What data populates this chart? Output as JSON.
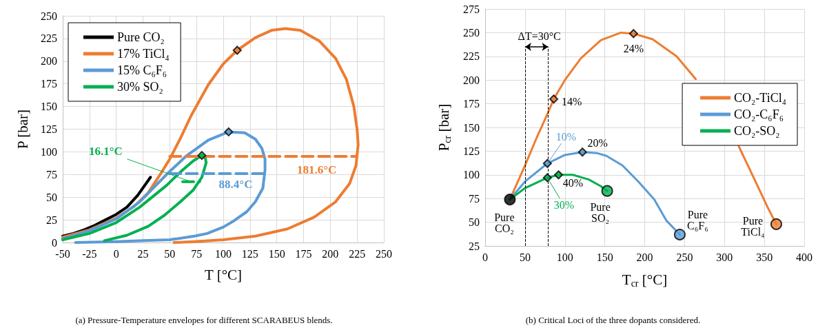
{
  "chart_data": [
    {
      "type": "line",
      "xlabel": "T [°C]",
      "ylabel": "P [bar]",
      "xlim": [
        -50,
        250
      ],
      "ylim": [
        0,
        250
      ],
      "xticks": [
        -50,
        -25,
        0,
        25,
        50,
        75,
        100,
        125,
        150,
        175,
        200,
        225,
        250
      ],
      "yticks": [
        0,
        25,
        50,
        75,
        100,
        125,
        150,
        175,
        200,
        225,
        250
      ],
      "grid": true,
      "legend": "top left",
      "marker": "none",
      "series": [
        {
          "name": "Pure CO₂",
          "color": "#000000",
          "x": [
            -50,
            -40,
            -30,
            -20,
            -10,
            0,
            10,
            20,
            32
          ],
          "values": [
            7,
            10,
            14,
            19,
            25,
            31,
            39,
            52,
            72
          ]
        },
        {
          "name": "17% TiCl₄",
          "color": "#ed7d31",
          "x": [
            -50,
            -25,
            0,
            17,
            30,
            41,
            50,
            60,
            70,
            86,
            100,
            113,
            130,
            145,
            158,
            172,
            190,
            205,
            215,
            222,
            225,
            226,
            224,
            218,
            205,
            185,
            160,
            130,
            100,
            73,
            54
          ],
          "values": [
            6,
            14,
            27,
            40,
            55,
            75,
            92,
            115,
            140,
            174,
            197,
            212,
            226,
            234,
            236,
            234,
            222,
            203,
            180,
            150,
            125,
            108,
            85,
            65,
            45,
            28,
            15,
            7,
            3,
            1,
            0
          ]
        },
        {
          "name": "15% C₆F₆",
          "color": "#5b9bd5",
          "x": [
            -50,
            -25,
            0,
            22,
            47,
            65,
            86,
            105,
            120,
            130,
            136,
            139,
            139,
            137,
            130,
            122,
            110,
            100,
            85,
            73,
            50,
            25,
            0,
            -38
          ],
          "values": [
            4,
            13,
            26,
            45,
            75,
            95,
            113,
            122,
            121,
            114,
            104,
            92,
            80,
            60,
            45,
            34,
            24,
            17,
            10,
            7,
            3,
            2,
            1,
            0
          ]
        },
        {
          "name": "30% SO₂",
          "color": "#00b050",
          "x": [
            -50,
            -25,
            0,
            22,
            47,
            62,
            72,
            80,
            83,
            84,
            80,
            72,
            60,
            45,
            30,
            10,
            -11
          ],
          "values": [
            3,
            10,
            22,
            39,
            63,
            80,
            90,
            96,
            95,
            88,
            72,
            58,
            45,
            30,
            18,
            8,
            2
          ]
        },
        {
          "line_style": "dashed",
          "color": "#ed7d31",
          "x": [
            50,
            225
          ],
          "values": [
            95,
            95
          ]
        },
        {
          "line_style": "dashed",
          "color": "#5b9bd5",
          "x": [
            50,
            138
          ],
          "values": [
            76,
            76
          ]
        },
        {
          "line_style": "dashed",
          "color": "#00b050",
          "x": [
            62,
            78
          ],
          "values": [
            67,
            67
          ]
        },
        {
          "type": "scatter",
          "marker": "diamond",
          "color": "#ed7d31",
          "x": [
            113
          ],
          "values": [
            212
          ]
        },
        {
          "type": "scatter",
          "marker": "diamond",
          "color": "#5b9bd5",
          "x": [
            105
          ],
          "values": [
            122
          ]
        },
        {
          "type": "scatter",
          "marker": "diamond",
          "color": "#00b050",
          "x": [
            80
          ],
          "values": [
            96
          ]
        }
      ],
      "annotations": [
        {
          "text": "16.1°C",
          "x": 70,
          "y": 67
        },
        {
          "text": "88.4°C",
          "x": 138,
          "y": 76
        },
        {
          "text": "181.6°C",
          "x": 224,
          "y": 95
        },
        "(a) Pressure-Temperature envelopes for different SCARABEUS blends."
      ]
    },
    {
      "type": "line",
      "xlabel": "T$_{cr}$ [°C]",
      "ylabel": "P$_{cr}$ [bar]",
      "xlim": [
        0,
        400
      ],
      "ylim": [
        25,
        275
      ],
      "xticks": [
        0,
        50,
        100,
        150,
        200,
        250,
        300,
        350,
        400
      ],
      "yticks": [
        25,
        50,
        75,
        100,
        125,
        150,
        175,
        200,
        225,
        250,
        275
      ],
      "grid": true,
      "legend": "right",
      "marker": "none",
      "series": [
        {
          "name": "CO₂-TiCl₄",
          "color": "#ed7d31",
          "x": [
            31,
            50,
            65,
            78,
            86,
            100,
            120,
            145,
            170,
            186,
            210,
            240,
            264,
            290,
            318,
            335,
            354,
            365
          ],
          "values": [
            74,
            110,
            140,
            164,
            180,
            200,
            223,
            242,
            250,
            249,
            243,
            225,
            201,
            null,
            130,
            100,
            66,
            48
          ]
        },
        {
          "name": "CO₂-C₆F₆",
          "color": "#5b9bd5",
          "x": [
            31,
            50,
            78,
            100,
            122,
            140,
            152,
            172,
            192,
            212,
            227,
            244
          ],
          "values": [
            74,
            93,
            112,
            121,
            124,
            123,
            120,
            110,
            93,
            74,
            52,
            37
          ]
        },
        {
          "name": "CO₂-SO₂",
          "color": "#00b050",
          "x": [
            31,
            50,
            78,
            92,
            110,
            130,
            145,
            153
          ],
          "values": [
            74,
            86,
            97,
            100,
            100,
            95,
            88,
            83
          ]
        },
        {
          "type": "scatter",
          "marker": "diamond",
          "color": "#ed7d31",
          "x": [
            86,
            186
          ],
          "values": [
            180,
            249
          ]
        },
        {
          "type": "scatter",
          "marker": "diamond",
          "color": "#5b9bd5",
          "x": [
            78,
            122
          ],
          "values": [
            112,
            124
          ]
        },
        {
          "type": "scatter",
          "marker": "diamond",
          "color": "#00b050",
          "x": [
            78,
            92
          ],
          "values": [
            97,
            100
          ]
        },
        {
          "type": "scatter",
          "marker": "circle",
          "colors": [
            "#000000",
            "#00b050",
            "#5b9bd5",
            "#ed7d31"
          ],
          "x": [
            31,
            153,
            244,
            365
          ],
          "values": [
            74,
            83,
            37,
            48
          ]
        }
      ],
      "ref_lines": [
        {
          "axis": "x",
          "value": 50,
          "color": "#000000",
          "line_style": "dashed"
        },
        {
          "axis": "x",
          "value": 79,
          "color": "#000000",
          "line_style": "dashed"
        }
      ],
      "annotations": [
        "ΔT=30°C",
        {
          "text": "14%",
          "x": 86,
          "y": 180
        },
        {
          "text": "24%",
          "x": 186,
          "y": 249
        },
        {
          "text": "10%",
          "x": 78,
          "y": 112
        },
        {
          "text": "20%",
          "x": 122,
          "y": 124
        },
        {
          "text": "30%",
          "x": 78,
          "y": 97
        },
        {
          "text": "40%",
          "x": 92,
          "y": 100
        },
        {
          "text": "Pure CO₂",
          "x": 31,
          "y": 74
        },
        {
          "text": "Pure SO₂",
          "x": 153,
          "y": 83
        },
        {
          "text": "Pure C₆F₆",
          "x": 244,
          "y": 37
        },
        {
          "text": "Pure TiCl₄",
          "x": 365,
          "y": 48
        },
        "(b) Critical Loci of the three dopants considered."
      ]
    }
  ]
}
